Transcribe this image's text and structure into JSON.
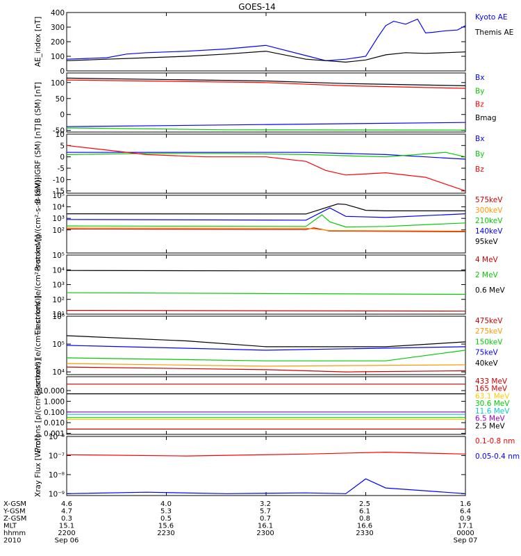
{
  "title": "GOES-14",
  "orbit": {
    "row_labels": [
      "X-GSM",
      "Y-GSM",
      "Z-GSM",
      "MLT",
      "hhmm",
      "2010"
    ],
    "columns": [
      [
        "4.6",
        "4.7",
        "0.3",
        "15.1",
        "2200",
        "Sep 06"
      ],
      [
        "4.0",
        "5.3",
        "0.5",
        "15.6",
        "2230",
        ""
      ],
      [
        "3.2",
        "5.7",
        "0.7",
        "16.1",
        "2300",
        ""
      ],
      [
        "2.5",
        "6.1",
        "0.8",
        "16.6",
        "2330",
        ""
      ],
      [
        "1.6",
        "6.4",
        "0.9",
        "17.1",
        "0000",
        "Sep 07"
      ]
    ]
  },
  "chart_data": [
    {
      "type": "line",
      "ylabel": "AE_index [nT]",
      "ylim": [
        0,
        400
      ],
      "yticks": [
        "0",
        "100",
        "200",
        "300",
        "400"
      ],
      "series": [
        {
          "name": "Kyoto AE",
          "color": "#0000ff",
          "x": [
            0,
            10,
            15,
            20,
            30,
            40,
            50,
            60,
            65,
            70,
            75,
            78,
            80,
            82,
            85,
            88,
            90,
            92,
            95,
            98,
            100
          ],
          "y": [
            80,
            90,
            115,
            125,
            135,
            150,
            175,
            105,
            70,
            80,
            100,
            230,
            310,
            340,
            320,
            355,
            260,
            265,
            275,
            280,
            310
          ]
        },
        {
          "name": "Themis AE",
          "color": "#000000",
          "x": [
            0,
            10,
            20,
            30,
            40,
            50,
            60,
            70,
            75,
            80,
            85,
            90,
            95,
            100
          ],
          "y": [
            70,
            80,
            90,
            100,
            115,
            135,
            80,
            60,
            75,
            110,
            125,
            120,
            125,
            130
          ]
        }
      ]
    },
    {
      "type": "line",
      "ylabel": "B (SM) [nT]",
      "ylim": [
        -55,
        130
      ],
      "yticks": [
        "-50",
        "0",
        "50",
        "100"
      ],
      "series": [
        {
          "name": "Bx",
          "color": "#0000ff",
          "x": [
            0,
            100
          ],
          "y": [
            -38,
            -25
          ]
        },
        {
          "name": "By",
          "color": "#00cc00",
          "x": [
            0,
            40,
            100
          ],
          "y": [
            -42,
            -48,
            -49
          ]
        },
        {
          "name": "Bz",
          "color": "#ff0000",
          "x": [
            0,
            50,
            70,
            100
          ],
          "y": [
            108,
            100,
            90,
            82
          ]
        },
        {
          "name": "Bmag",
          "color": "#000000",
          "x": [
            0,
            50,
            70,
            100
          ],
          "y": [
            114,
            105,
            97,
            90
          ]
        }
      ]
    },
    {
      "type": "line",
      "ylabel": "B (SM)-IGRF (SM) [nT]",
      "ylim": [
        -16,
        10
      ],
      "yticks": [
        "-15",
        "-10",
        "-5",
        "0",
        "5",
        "10"
      ],
      "series": [
        {
          "name": "Bx",
          "color": "#0000ff",
          "x": [
            0,
            20,
            40,
            60,
            80,
            90,
            100
          ],
          "y": [
            2,
            2,
            2,
            2,
            1,
            0,
            -1
          ]
        },
        {
          "name": "By",
          "color": "#00cc00",
          "x": [
            0,
            20,
            40,
            60,
            80,
            95,
            100
          ],
          "y": [
            1,
            1.5,
            1.5,
            1,
            0,
            2,
            0
          ]
        },
        {
          "name": "Bz",
          "color": "#ff0000",
          "x": [
            0,
            10,
            20,
            35,
            50,
            60,
            65,
            70,
            80,
            90,
            100
          ],
          "y": [
            5,
            3,
            1,
            0,
            0,
            -2,
            -6,
            -8,
            -7,
            -9,
            -15
          ]
        }
      ]
    },
    {
      "type": "line",
      "ylabel": "Protons [p/(cm²-s-sr-keV)]",
      "ylim": [
        1,
        100000
      ],
      "log": true,
      "yticks": [
        "10²",
        "10³",
        "10⁴",
        "10⁵"
      ],
      "series": [
        {
          "name": "575keV",
          "color": "#cc0000",
          "x": [
            0,
            60,
            62,
            66,
            100
          ],
          "y": [
            120,
            110,
            150,
            80,
            70
          ]
        },
        {
          "name": "300keV",
          "color": "#ff9900",
          "x": [
            0,
            60,
            66,
            100
          ],
          "y": [
            150,
            140,
            90,
            80
          ]
        },
        {
          "name": "210keV",
          "color": "#00cc00",
          "x": [
            0,
            60,
            64,
            66,
            70,
            80,
            100
          ],
          "y": [
            220,
            200,
            2000,
            500,
            180,
            200,
            400
          ]
        },
        {
          "name": "140keV",
          "color": "#0000ff",
          "x": [
            0,
            60,
            66,
            70,
            80,
            100
          ],
          "y": [
            800,
            700,
            8000,
            1500,
            1200,
            2500
          ]
        },
        {
          "name": "95keV",
          "color": "#000000",
          "x": [
            0,
            60,
            68,
            70,
            75,
            80,
            100
          ],
          "y": [
            2500,
            2400,
            18000,
            16000,
            5000,
            4500,
            4500
          ]
        }
      ]
    },
    {
      "type": "line",
      "ylabel": "Electrons [e/(cm²-s-sr-keV)]",
      "ylim": [
        10,
        100000
      ],
      "log": true,
      "yticks": [
        "10¹",
        "10²",
        "10³",
        "10⁴",
        "10⁵"
      ],
      "series": [
        {
          "name": "4 MeV",
          "color": "#cc0000",
          "x": [
            0,
            100
          ],
          "y": [
            18,
            16
          ]
        },
        {
          "name": "2 MeV",
          "color": "#00cc00",
          "x": [
            0,
            100
          ],
          "y": [
            280,
            220
          ]
        },
        {
          "name": "0.6 MeV",
          "color": "#000000",
          "x": [
            0,
            50,
            100
          ],
          "y": [
            9000,
            8500,
            8500
          ]
        }
      ]
    },
    {
      "type": "line",
      "ylabel": "Electrons [e/(cm²-s-sr-keV)]",
      "ylim": [
        8000,
        1000000
      ],
      "log": true,
      "yticks": [
        "10⁴",
        "10⁵",
        "10⁶"
      ],
      "series": [
        {
          "name": "475keV",
          "color": "#cc0000",
          "x": [
            0,
            50,
            70,
            100
          ],
          "y": [
            15000,
            12000,
            10000,
            11000
          ]
        },
        {
          "name": "275keV",
          "color": "#ff9900",
          "x": [
            0,
            50,
            100
          ],
          "y": [
            20000,
            16000,
            18000
          ]
        },
        {
          "name": "150keV",
          "color": "#00cc00",
          "x": [
            0,
            50,
            80,
            100
          ],
          "y": [
            32000,
            25000,
            25000,
            60000
          ]
        },
        {
          "name": "75keV",
          "color": "#0000ff",
          "x": [
            0,
            50,
            100
          ],
          "y": [
            90000,
            60000,
            80000
          ]
        },
        {
          "name": "40keV",
          "color": "#000000",
          "x": [
            0,
            30,
            50,
            80,
            100
          ],
          "y": [
            200000,
            130000,
            80000,
            80000,
            120000
          ]
        }
      ]
    },
    {
      "type": "line",
      "ylabel": "Protons [p/(cm²-s-sr-keV)]",
      "ylim": [
        0.0008,
        200
      ],
      "log": true,
      "yticks": [
        "0.001",
        "0.010",
        "0.100",
        "1.000",
        "10.000"
      ],
      "series": [
        {
          "name": "433 MeV",
          "color": "#cc0000",
          "x": [
            0,
            100
          ],
          "y": [
            40,
            40
          ]
        },
        {
          "name": "165 MeV",
          "color": "#cc0000",
          "x": [
            0,
            100
          ],
          "y": [
            0.0025,
            0.0025
          ]
        },
        {
          "name": "63.1 MeV",
          "color": "#ffcc00",
          "x": [
            0,
            100
          ],
          "y": [
            0.02,
            0.02
          ]
        },
        {
          "name": "30.6 MeV",
          "color": "#00cc00",
          "x": [
            0,
            100
          ],
          "y": [
            0.03,
            0.03
          ]
        },
        {
          "name": "11.6 MeV",
          "color": "#00cccc",
          "x": [
            0,
            100
          ],
          "y": [
            0.06,
            0.06
          ]
        },
        {
          "name": "6.5 MeV",
          "color": "#9900cc",
          "x": [
            0,
            100
          ],
          "y": [
            0.1,
            0.1
          ]
        },
        {
          "name": "2.5 MeV",
          "color": "#000000",
          "x": [
            0,
            100
          ],
          "y": [
            5,
            5
          ]
        }
      ]
    },
    {
      "type": "line",
      "ylabel": "Xray Flux [W/m²]",
      "ylim": [
        8e-10,
        1e-06
      ],
      "log": true,
      "yticks": [
        "10⁻⁹",
        "10⁻⁸",
        "10⁻⁷",
        "10⁻⁶"
      ],
      "series": [
        {
          "name": "0.1-0.8 nm",
          "color": "#ff0000",
          "x": [
            0,
            30,
            60,
            80,
            100
          ],
          "y": [
            1.1e-07,
            9.5e-08,
            1.2e-07,
            1.5e-07,
            1.2e-07
          ]
        },
        {
          "name": "0.05-0.4 nm",
          "color": "#0000ff",
          "x": [
            0,
            20,
            40,
            60,
            70,
            75,
            80,
            100
          ],
          "y": [
            1e-09,
            1.2e-09,
            1e-09,
            1.1e-09,
            1e-09,
            6e-09,
            2e-09,
            1e-09
          ]
        }
      ]
    }
  ]
}
